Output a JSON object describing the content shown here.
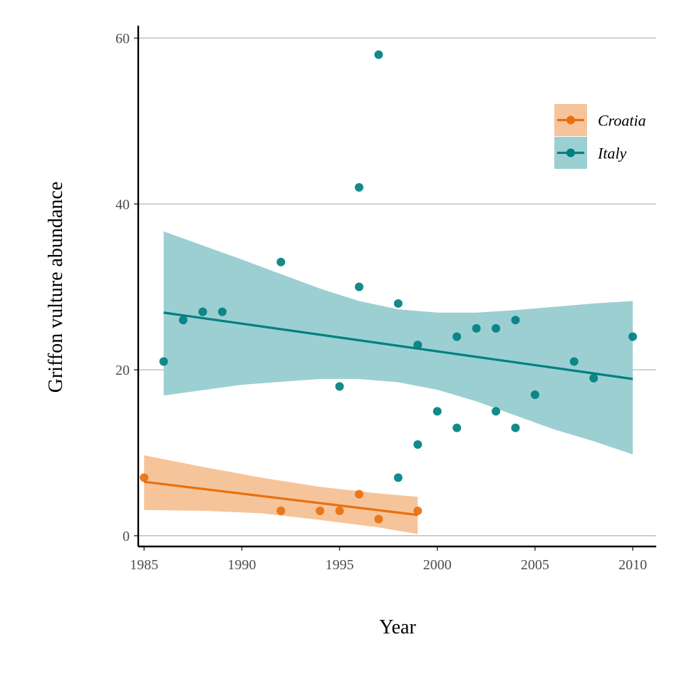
{
  "chart_data": {
    "type": "scatter",
    "title": "",
    "xlabel": "Year",
    "ylabel": "Griffon vulture abundance",
    "xlim": [
      1984.7,
      2011.2
    ],
    "ylim": [
      -1.3,
      61.5
    ],
    "x_ticks": [
      1985,
      1990,
      1995,
      2000,
      2005,
      2010
    ],
    "y_ticks": [
      0,
      20,
      40,
      60
    ],
    "grid": "horizontal major lines",
    "legend_position": "top-right",
    "series": [
      {
        "name": "Croatia",
        "color": "#e8700e",
        "ribbon_color": "#f6c49b",
        "points": [
          [
            1985,
            7
          ],
          [
            1992,
            3
          ],
          [
            1994,
            3
          ],
          [
            1995,
            3
          ],
          [
            1996,
            5
          ],
          [
            1997,
            2
          ],
          [
            1999,
            3
          ]
        ],
        "trend": {
          "x": [
            1985,
            1999
          ],
          "y": [
            6.5,
            2.5
          ]
        },
        "band": {
          "x": [
            1985,
            1988,
            1991,
            1994,
            1997,
            1999
          ],
          "upper": [
            9.7,
            8.3,
            7.0,
            5.9,
            5.1,
            4.7
          ],
          "lower": [
            3.1,
            3.0,
            2.7,
            1.9,
            1.0,
            0.2
          ]
        }
      },
      {
        "name": "Italy",
        "color": "#008080",
        "ribbon_color": "#9ccfd2",
        "points": [
          [
            1986,
            21
          ],
          [
            1987,
            26
          ],
          [
            1988,
            27
          ],
          [
            1989,
            27
          ],
          [
            1992,
            33
          ],
          [
            1995,
            18
          ],
          [
            1996,
            42
          ],
          [
            1996,
            30
          ],
          [
            1997,
            58
          ],
          [
            1998,
            28
          ],
          [
            1998,
            7
          ],
          [
            1999,
            23
          ],
          [
            1999,
            11
          ],
          [
            2000,
            15
          ],
          [
            2001,
            24
          ],
          [
            2001,
            13
          ],
          [
            2002,
            25
          ],
          [
            2003,
            25
          ],
          [
            2003,
            15
          ],
          [
            2004,
            26
          ],
          [
            2004,
            13
          ],
          [
            2005,
            17
          ],
          [
            2007,
            21
          ],
          [
            2008,
            19
          ],
          [
            2010,
            24
          ]
        ],
        "trend": {
          "x": [
            1986,
            2010
          ],
          "y": [
            26.9,
            18.9
          ]
        },
        "band": {
          "x": [
            1986,
            1990,
            1994,
            1996,
            1998,
            2000,
            2002,
            2004,
            2006,
            2008,
            2010
          ],
          "upper": [
            36.7,
            33.3,
            29.8,
            28.3,
            27.3,
            26.9,
            26.9,
            27.2,
            27.6,
            28.0,
            28.3
          ],
          "lower": [
            16.9,
            18.2,
            18.9,
            18.9,
            18.5,
            17.6,
            16.2,
            14.5,
            12.8,
            11.4,
            9.8
          ]
        }
      }
    ]
  }
}
